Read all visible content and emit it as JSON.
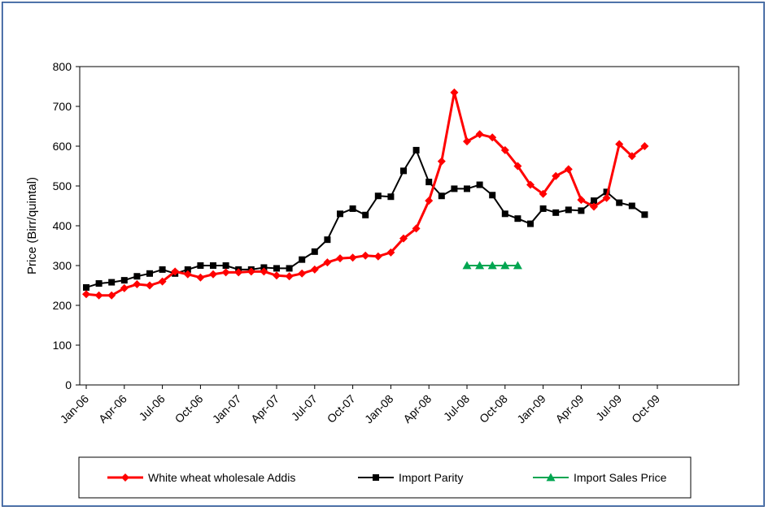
{
  "chart_data": {
    "type": "line",
    "title": "",
    "xlabel": "",
    "ylabel": "Price (Birr/quintal)",
    "ylim": [
      0,
      800
    ],
    "yticks": [
      0,
      100,
      200,
      300,
      400,
      500,
      600,
      700,
      800
    ],
    "xticks": [
      "Jan-06",
      "Apr-06",
      "Jul-06",
      "Oct-06",
      "Jan-07",
      "Apr-07",
      "Jul-07",
      "Oct-07",
      "Jan-08",
      "Apr-08",
      "Jul-08",
      "Oct-08",
      "Jan-09",
      "Apr-09",
      "Jul-09",
      "Oct-09"
    ],
    "grid": false,
    "legend_position": "bottom",
    "series": [
      {
        "name": "White wheat wholesale Addis",
        "color": "#ff0000",
        "marker": "diamond",
        "x": [
          "Jan-06",
          "Feb-06",
          "Mar-06",
          "Apr-06",
          "May-06",
          "Jun-06",
          "Jul-06",
          "Aug-06",
          "Sep-06",
          "Oct-06",
          "Nov-06",
          "Dec-06",
          "Jan-07",
          "Feb-07",
          "Mar-07",
          "Apr-07",
          "May-07",
          "Jun-07",
          "Jul-07",
          "Aug-07",
          "Sep-07",
          "Oct-07",
          "Nov-07",
          "Dec-07",
          "Jan-08",
          "Feb-08",
          "Mar-08",
          "Apr-08",
          "May-08",
          "Jun-08",
          "Jul-08",
          "Aug-08",
          "Sep-08",
          "Oct-08",
          "Nov-08",
          "Dec-08",
          "Jan-09",
          "Feb-09",
          "Mar-09",
          "Apr-09",
          "May-09",
          "Jun-09",
          "Jul-09",
          "Aug-09",
          "Sep-09"
        ],
        "values": [
          228,
          225,
          225,
          243,
          253,
          250,
          260,
          285,
          278,
          270,
          278,
          283,
          283,
          285,
          285,
          275,
          273,
          280,
          290,
          308,
          318,
          320,
          325,
          323,
          333,
          368,
          393,
          463,
          562,
          735,
          612,
          630,
          622,
          590,
          550,
          503,
          480,
          525,
          542,
          465,
          448,
          470,
          605,
          575,
          600
        ]
      },
      {
        "name": "Import Parity",
        "color": "#000000",
        "marker": "square",
        "x": [
          "Jan-06",
          "Feb-06",
          "Mar-06",
          "Apr-06",
          "May-06",
          "Jun-06",
          "Jul-06",
          "Aug-06",
          "Sep-06",
          "Oct-06",
          "Nov-06",
          "Dec-06",
          "Jan-07",
          "Feb-07",
          "Mar-07",
          "Apr-07",
          "May-07",
          "Jun-07",
          "Jul-07",
          "Aug-07",
          "Sep-07",
          "Oct-07",
          "Nov-07",
          "Dec-07",
          "Jan-08",
          "Feb-08",
          "Mar-08",
          "Apr-08",
          "May-08",
          "Jun-08",
          "Jul-08",
          "Aug-08",
          "Sep-08",
          "Oct-08",
          "Nov-08",
          "Dec-08",
          "Jan-09",
          "Feb-09",
          "Mar-09",
          "Apr-09",
          "May-09",
          "Jun-09",
          "Jul-09",
          "Aug-09",
          "Sep-09"
        ],
        "values": [
          245,
          255,
          258,
          263,
          273,
          280,
          290,
          280,
          290,
          300,
          300,
          300,
          290,
          290,
          295,
          293,
          293,
          315,
          335,
          365,
          430,
          443,
          427,
          475,
          473,
          538,
          590,
          510,
          475,
          493,
          493,
          503,
          477,
          430,
          418,
          405,
          443,
          433,
          440,
          438,
          463,
          485,
          458,
          450,
          428
        ]
      },
      {
        "name": "Import Sales Price",
        "color": "#00a651",
        "marker": "triangle",
        "x": [
          "Jul-08",
          "Aug-08",
          "Sep-08",
          "Oct-08",
          "Nov-08"
        ],
        "values": [
          300,
          300,
          300,
          300,
          300
        ]
      }
    ]
  }
}
